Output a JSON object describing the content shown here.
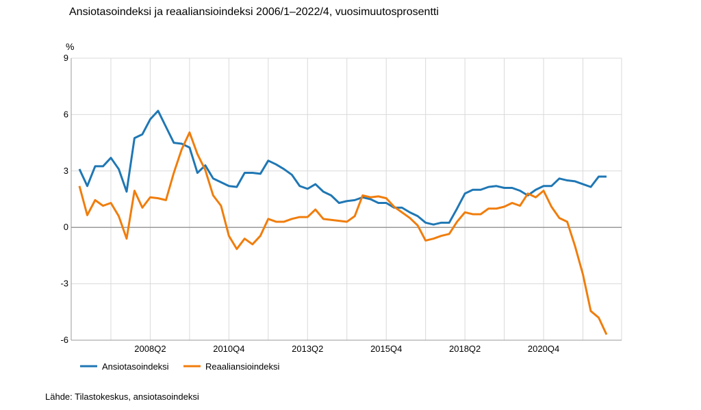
{
  "chart_data": {
    "type": "line",
    "title": "Ansiotasoindeksi ja reaaliansioindeksi 2006/1–2022/4, vuosimuutosprosentti",
    "ylabel": "%",
    "ylim": [
      -6,
      9
    ],
    "yticks": [
      -6,
      -3,
      0,
      3,
      6,
      9
    ],
    "x_start": "2006Q1",
    "x_end": "2022Q4",
    "xtick_labels": [
      {
        "index": 9,
        "label": "2008Q2"
      },
      {
        "index": 19,
        "label": "2010Q4"
      },
      {
        "index": 29,
        "label": "2013Q2"
      },
      {
        "index": 39,
        "label": "2015Q4"
      },
      {
        "index": 49,
        "label": "2018Q2"
      },
      {
        "index": 59,
        "label": "2020Q4"
      }
    ],
    "grid": true,
    "legend": "bottom-left",
    "series": [
      {
        "name": "Ansiotasoindeksi",
        "color": "#1f77b4",
        "values": [
          3.1,
          2.2,
          3.25,
          3.25,
          3.7,
          3.1,
          1.9,
          4.75,
          4.95,
          5.75,
          6.2,
          5.35,
          4.5,
          4.45,
          4.25,
          2.9,
          3.3,
          2.6,
          2.4,
          2.2,
          2.15,
          2.9,
          2.9,
          2.85,
          3.55,
          3.35,
          3.1,
          2.8,
          2.2,
          2.05,
          2.3,
          1.9,
          1.7,
          1.3,
          1.4,
          1.45,
          1.6,
          1.5,
          1.3,
          1.3,
          1.05,
          1.05,
          0.8,
          0.6,
          0.25,
          0.15,
          0.25,
          0.25,
          1.0,
          1.8,
          2.0,
          2.0,
          2.15,
          2.2,
          2.1,
          2.1,
          1.95,
          1.7,
          2.0,
          2.2,
          2.2,
          2.6,
          2.5,
          2.45,
          2.3,
          2.15,
          2.7,
          2.7
        ]
      },
      {
        "name": "Reaaliansioindeksi",
        "color": "#f07d0c",
        "values": [
          2.2,
          0.65,
          1.45,
          1.15,
          1.3,
          0.6,
          -0.6,
          1.95,
          1.05,
          1.6,
          1.55,
          1.45,
          2.9,
          4.15,
          5.05,
          3.9,
          3.05,
          1.7,
          1.15,
          -0.45,
          -1.15,
          -0.6,
          -0.9,
          -0.45,
          0.45,
          0.3,
          0.3,
          0.45,
          0.55,
          0.55,
          0.95,
          0.45,
          0.4,
          0.35,
          0.3,
          0.6,
          1.7,
          1.6,
          1.65,
          1.55,
          1.1,
          0.8,
          0.5,
          0.1,
          -0.7,
          -0.6,
          -0.45,
          -0.35,
          0.3,
          0.8,
          0.7,
          0.7,
          1.0,
          1.0,
          1.1,
          1.3,
          1.15,
          1.8,
          1.6,
          1.95,
          1.1,
          0.5,
          0.3,
          -1.0,
          -2.5,
          -4.45,
          -4.8,
          -5.7
        ]
      }
    ]
  },
  "source": "Lähde: Tilastokeskus, ansiotasoindeksi"
}
